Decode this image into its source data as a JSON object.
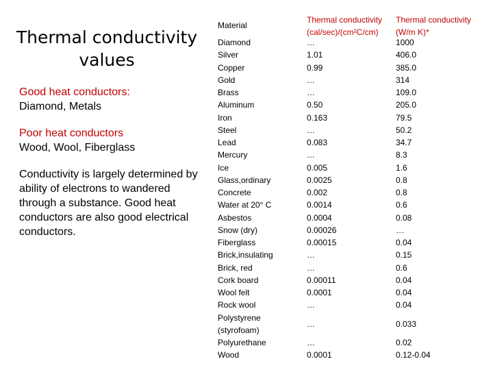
{
  "slide": {
    "title": "Thermal conductivity values",
    "good_heading": "Good heat conductors:",
    "good_list": "Diamond, Metals",
    "poor_heading": "Poor heat conductors",
    "poor_list": "Wood, Wool, Fiberglass",
    "explanation": "Conductivity is  largely determined by ability of electrons to wandered through a substance. Good heat conductors are also good electrical conductors.",
    "colors": {
      "accent": "#c00000",
      "text": "#000000"
    }
  },
  "table": {
    "headers": {
      "material": "Material",
      "cal": "Thermal conductivity (cal/sec)/(cm²C/cm)",
      "si": "Thermal conductivity (W/m K)*"
    },
    "rows": [
      {
        "material": "Diamond",
        "cal": "…",
        "si": "1000"
      },
      {
        "material": "Silver",
        "cal": "1.01",
        "si": "406.0"
      },
      {
        "material": "Copper",
        "cal": "0.99",
        "si": "385.0"
      },
      {
        "material": "Gold",
        "cal": "…",
        "si": "314"
      },
      {
        "material": "Brass",
        "cal": "…",
        "si": "109.0"
      },
      {
        "material": "Aluminum",
        "cal": "0.50",
        "si": "205.0"
      },
      {
        "material": "Iron",
        "cal": "0.163",
        "si": "79.5"
      },
      {
        "material": "Steel",
        "cal": "…",
        "si": "50.2"
      },
      {
        "material": "Lead",
        "cal": "0.083",
        "si": "34.7"
      },
      {
        "material": "Mercury",
        "cal": "…",
        "si": "8.3"
      },
      {
        "material": "Ice",
        "cal": "0.005",
        "si": "1.6"
      },
      {
        "material": "Glass,ordinary",
        "cal": "0.0025",
        "si": "0.8"
      },
      {
        "material": "Concrete",
        "cal": "0.002",
        "si": "0.8"
      },
      {
        "material": "Water at 20° C",
        "cal": "0.0014",
        "si": "0.6"
      },
      {
        "material": "Asbestos",
        "cal": "0.0004",
        "si": "0.08"
      },
      {
        "material": "Snow (dry)",
        "cal": "0.00026",
        "si": "…"
      },
      {
        "material": "Fiberglass",
        "cal": "0.00015",
        "si": "0.04"
      },
      {
        "material": "Brick,insulating",
        "cal": "…",
        "si": "0.15"
      },
      {
        "material": "Brick, red",
        "cal": "…",
        "si": "0.6"
      },
      {
        "material": "Cork board",
        "cal": "0.00011",
        "si": "0.04"
      },
      {
        "material": "Wool felt",
        "cal": "0.0001",
        "si": "0.04"
      },
      {
        "material": "Rock wool",
        "cal": "…",
        "si": "0.04"
      },
      {
        "material": "Polystyrene",
        "material_line2": "(styrofoam)",
        "cal": "…",
        "si": "0.033"
      },
      {
        "material": "Polyurethane",
        "cal": "…",
        "si": "0.02"
      },
      {
        "material": "Wood",
        "cal": "0.0001",
        "si": "0.12-0.04"
      }
    ]
  }
}
